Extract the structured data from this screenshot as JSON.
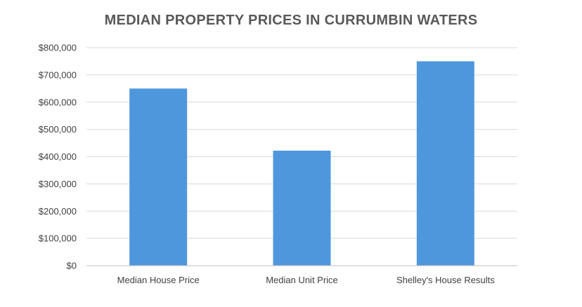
{
  "chart_data": {
    "type": "bar",
    "title": "MEDIAN PROPERTY PRICES IN CURRUMBIN WATERS",
    "xlabel": "",
    "ylabel": "",
    "categories": [
      "Median House Price",
      "Median Unit Price",
      "Shelley's House Results"
    ],
    "values": [
      650000,
      422000,
      750000
    ],
    "ylim": [
      0,
      800000
    ],
    "yticks": [
      0,
      100000,
      200000,
      300000,
      400000,
      500000,
      600000,
      700000,
      800000
    ],
    "ytick_labels": [
      "$0",
      "$100,000",
      "$200,000",
      "$300,000",
      "$400,000",
      "$500,000",
      "$600,000",
      "$700,000",
      "$800,000"
    ],
    "grid": true,
    "legend": "none",
    "bar_color": "#4f97dd",
    "grid_color": "#d9d9d9"
  }
}
